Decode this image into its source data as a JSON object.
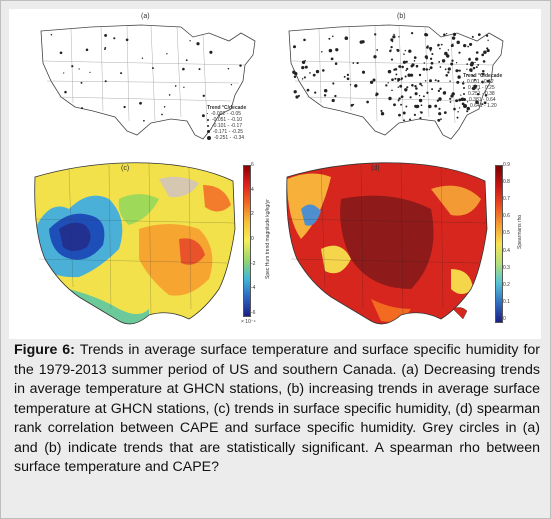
{
  "figure": {
    "panels": [
      {
        "label": "(a)",
        "legend_title": "Trend °C/decade",
        "legend_items": [
          "-0.002 - -0.05",
          "-0.051 - -0.10",
          "-0.101 - -0.17",
          "-0.171 - -0.25",
          "-0.251 - -0.34"
        ]
      },
      {
        "label": "(b)",
        "legend_title": "Trend °C/decade",
        "legend_items": [
          "0.001 - 0.12",
          "0.121 - 0.25",
          "0.251 - 0.38",
          "0.381 - 0.64",
          "0.641 - 1.20"
        ]
      },
      {
        "label": "(c)",
        "colorbar_label": "Spec Hum trend magnitude kg/kg/yr",
        "colorbar_ticks": [
          "6",
          "4",
          "2",
          "0",
          "-2",
          "-4",
          "-6"
        ],
        "colorbar_exponent": "× 10⁻⁴"
      },
      {
        "label": "(d)",
        "colorbar_label": "Spearmans rho",
        "colorbar_ticks": [
          "0.9",
          "0.8",
          "0.7",
          "0.6",
          "0.5",
          "0.4",
          "0.3",
          "0.2",
          "0.1",
          "0"
        ]
      }
    ]
  },
  "caption": {
    "label": "Figure 6: ",
    "text": "Trends in average surface temperature and surface specific humidity for the 1979-2013 summer period of US and southern Canada. (a) Decreasing trends in average temperature at GHCN stations, (b) increasing trends in average surface temperature at GHCN stations, (c) trends in surface specific humidity, (d) spearman rank correlation between CAPE and surface specific humidity. Grey circles in (a) and (b) indicate trends that are statistically significant. A spearman rho between surface temperature and CAPE?"
  }
}
